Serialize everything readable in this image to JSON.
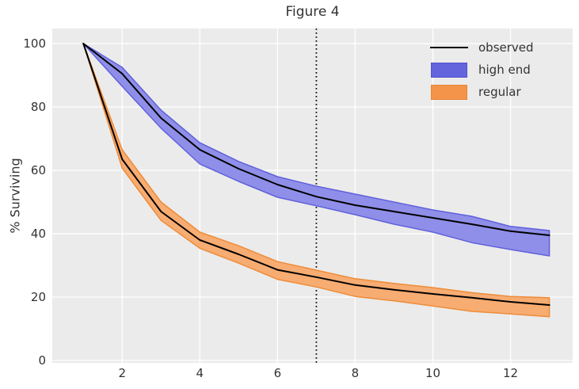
{
  "figure": {
    "title": "Figure 4"
  },
  "axis": {
    "ylabel": "% Surviving"
  },
  "legend": {
    "position": "upper right",
    "items": [
      {
        "label": "observed",
        "type": "line",
        "color": "#000000",
        "edge": "#000000"
      },
      {
        "label": "high end",
        "type": "patch",
        "color": "#6464dd",
        "edge": "#5050cf"
      },
      {
        "label": "regular",
        "type": "patch",
        "color": "#f4934a",
        "edge": "#e8842f"
      }
    ]
  },
  "chart_data": {
    "type": "line",
    "title": "Figure 4",
    "xlabel": "",
    "ylabel": "% Surviving",
    "x": [
      1,
      2,
      3,
      4,
      5,
      6,
      7,
      8,
      9,
      10,
      11,
      12,
      13
    ],
    "xticks": [
      2,
      4,
      6,
      8,
      10,
      12
    ],
    "yticks": [
      0,
      20,
      40,
      60,
      80,
      100
    ],
    "xlim": [
      0.2,
      13.6
    ],
    "ylim": [
      -0.75,
      104.75
    ],
    "grid": true,
    "axes_background": "#ebebeb",
    "grid_color": "#ffffff",
    "observed_color": "#000000",
    "vline": {
      "x": 7,
      "style": "dotted",
      "color": "#111111"
    },
    "groups": [
      {
        "name": "high end",
        "fill_color": "#8f8fe9",
        "edge_color": "#6060dc",
        "observed": [
          100,
          90.5,
          76.5,
          66.5,
          60.5,
          55.5,
          51.7,
          49,
          47,
          45,
          43,
          40.8,
          39.5
        ],
        "upper": [
          100,
          92.5,
          79,
          68.7,
          62.8,
          58,
          55,
          52.5,
          50,
          47.5,
          45.5,
          42.3,
          41
        ],
        "lower": [
          100,
          86.5,
          73.3,
          62,
          56.5,
          51.5,
          48.8,
          46,
          43,
          40.5,
          37.2,
          35,
          33
        ]
      },
      {
        "name": "regular",
        "fill_color": "#f7ac72",
        "edge_color": "#ee8c38",
        "observed": [
          100,
          63.5,
          47,
          38,
          33.5,
          28.6,
          26.3,
          23.8,
          22.3,
          21,
          19.8,
          18.5,
          17.5
        ],
        "upper": [
          100,
          66.5,
          50,
          40.5,
          36.2,
          31.2,
          28.5,
          25.8,
          24.3,
          23,
          21.4,
          20.2,
          19.8
        ],
        "lower": [
          100,
          60.7,
          44.2,
          35.4,
          30.7,
          25.6,
          23.2,
          20.2,
          18.8,
          17.2,
          15.5,
          14.7,
          13.8
        ]
      }
    ]
  }
}
